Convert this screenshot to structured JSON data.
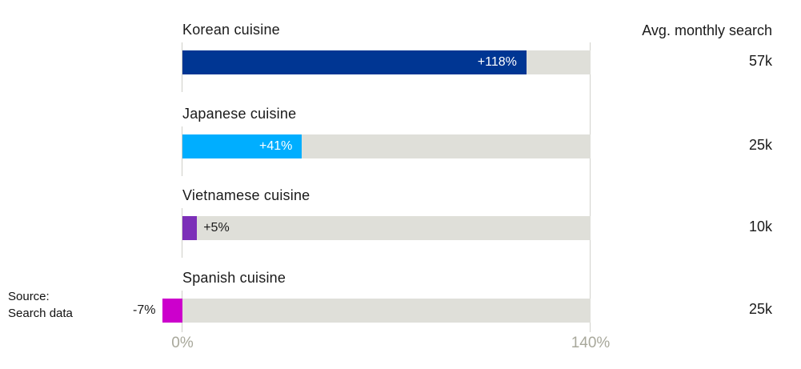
{
  "header": {
    "right_column_label": "Avg. monthly search"
  },
  "source": {
    "line1": "Source:",
    "line2": "Search data"
  },
  "chart_data": {
    "type": "bar",
    "orientation": "horizontal",
    "title": "",
    "x_axis": {
      "tick_labels": [
        "0%",
        "140%"
      ],
      "min_pct": 0,
      "max_pct": 140,
      "tick_color": "#a8a89b"
    },
    "legend": "none",
    "grid": "vertical lines at 0% and 140%",
    "track_color": "#dfdfd9",
    "gridline_color": "#d2d2cc",
    "rows": [
      {
        "label": "Korean cuisine",
        "value_pct": 118,
        "value_label": "+118%",
        "value_label_position": "inside",
        "avg_monthly_search": "57k",
        "color": "#003693"
      },
      {
        "label": "Japanese cuisine",
        "value_pct": 41,
        "value_label": "+41%",
        "value_label_position": "inside",
        "avg_monthly_search": "25k",
        "color": "#00aeff"
      },
      {
        "label": "Vietnamese cuisine",
        "value_pct": 5,
        "value_label": "+5%",
        "value_label_position": "outside-right",
        "avg_monthly_search": "10k",
        "color": "#7c2fb8"
      },
      {
        "label": "Spanish cuisine",
        "value_pct": -7,
        "value_label": "-7%",
        "value_label_position": "outside-left",
        "avg_monthly_search": "25k",
        "color": "#cc00cc"
      }
    ]
  }
}
